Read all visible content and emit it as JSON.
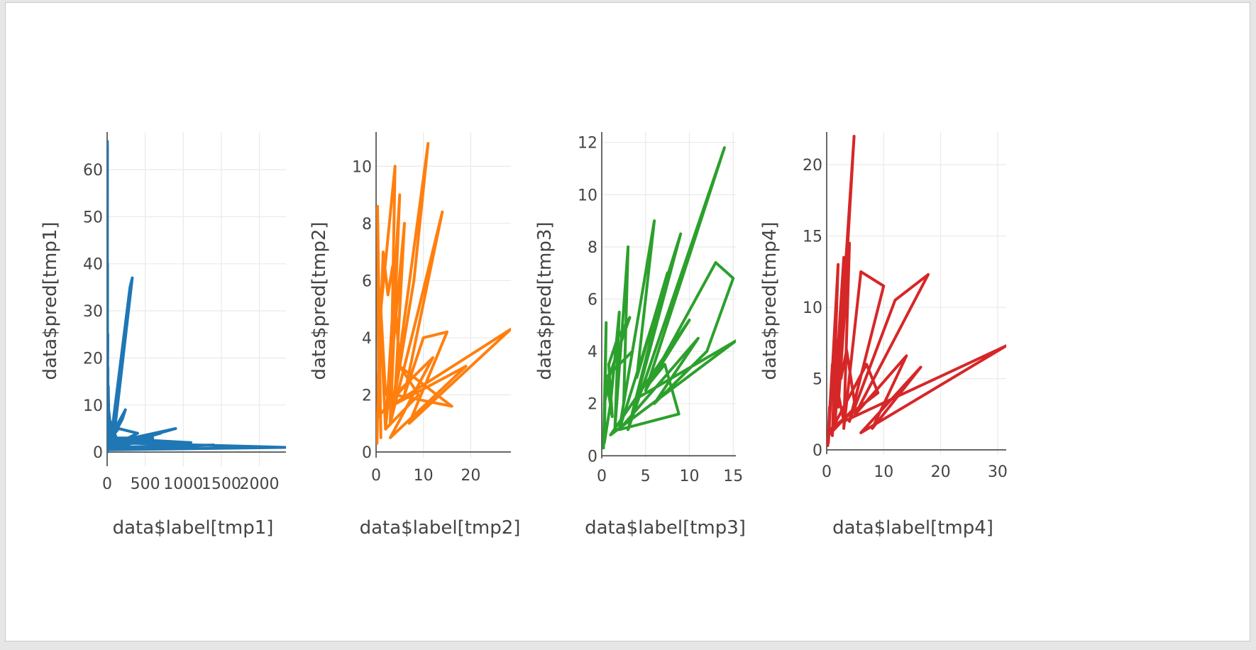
{
  "chart_data": [
    {
      "type": "line",
      "color": "#1f77b4",
      "xlabel": "data$label[tmp1]",
      "ylabel": "data$pred[tmp1]",
      "xlim": [
        0,
        2350
      ],
      "ylim": [
        -3,
        68
      ],
      "xticks": [
        0,
        500,
        1000,
        1500,
        2000
      ],
      "yticks": [
        0,
        10,
        20,
        30,
        40,
        50,
        60
      ],
      "x": [
        2,
        3,
        2,
        4,
        3,
        5,
        2,
        3,
        10,
        8,
        15,
        20,
        40,
        3,
        60,
        300,
        330,
        80,
        6,
        120,
        5,
        200,
        240,
        6,
        150,
        400,
        30,
        700,
        50,
        900,
        10,
        1400,
        5,
        2350,
        20,
        1100,
        3,
        600,
        2,
        6,
        4,
        3,
        1,
        9
      ],
      "y": [
        0,
        66,
        5,
        65,
        30,
        3,
        20,
        10,
        18,
        2,
        14,
        9,
        6,
        1,
        4,
        35,
        37,
        2,
        8,
        3,
        1,
        7,
        9,
        2,
        5,
        4,
        1,
        4,
        2,
        5,
        1,
        1.5,
        0.5,
        1,
        2,
        2,
        3,
        3,
        0.5,
        40,
        15,
        12,
        0,
        25
      ]
    },
    {
      "type": "line",
      "color": "#ff7f0e",
      "xlabel": "data$label[tmp2]",
      "ylabel": "data$pred[tmp2]",
      "xlim": [
        0,
        28.5
      ],
      "ylim": [
        -0.2,
        11.2
      ],
      "xticks": [
        0,
        10,
        20
      ],
      "yticks": [
        0,
        2,
        4,
        6,
        8,
        10
      ],
      "x": [
        0.2,
        0.5,
        0.3,
        1,
        0.5,
        2,
        1,
        4,
        3,
        5,
        2,
        6,
        4,
        8,
        11,
        3,
        9,
        14,
        6,
        10,
        15,
        7,
        28.5,
        2,
        19,
        3,
        12,
        4,
        16,
        5,
        9,
        2,
        1,
        0.5,
        1.5,
        2.5,
        3.5,
        5,
        7,
        0.3,
        0.8
      ],
      "y": [
        0.3,
        3,
        8.6,
        0.5,
        6,
        2,
        5,
        10,
        1,
        9,
        0.8,
        8,
        2,
        6,
        10.8,
        1,
        5,
        8.4,
        2,
        4,
        4.2,
        1,
        4.3,
        1.5,
        3,
        0.5,
        3.3,
        2,
        1.6,
        3,
        2,
        0.8,
        4.5,
        2.5,
        7,
        5.5,
        6.5,
        3,
        2.5,
        1.2,
        4
      ]
    },
    {
      "type": "line",
      "color": "#2ca02c",
      "xlabel": "data$label[tmp3]",
      "ylabel": "data$pred[tmp3]",
      "xlim": [
        0,
        15.3
      ],
      "ylim": [
        -0.1,
        12.4
      ],
      "xticks": [
        0,
        5,
        10,
        15
      ],
      "yticks": [
        0,
        2,
        4,
        6,
        8,
        10,
        12
      ],
      "x": [
        0.2,
        0.5,
        0.3,
        1,
        2,
        1.5,
        3,
        2.5,
        6,
        4,
        7.5,
        3,
        14,
        5,
        13,
        15,
        12,
        6,
        11,
        2,
        9,
        4,
        15.3,
        1,
        10,
        5.5,
        7.2,
        8.8,
        2,
        3.5,
        0.5,
        1.2,
        0.8,
        1.8,
        3.2,
        1,
        0.3
      ],
      "y": [
        0.3,
        5.1,
        0.5,
        2,
        5.5,
        1,
        8,
        2,
        9,
        3,
        7,
        1,
        11.8,
        2.5,
        7.4,
        6.8,
        4,
        2,
        4.5,
        1,
        8.5,
        2.2,
        4.4,
        0.8,
        5.2,
        2.8,
        3.5,
        1.6,
        1,
        4,
        3,
        1.5,
        3.5,
        4.5,
        5.3,
        3.2,
        2
      ]
    },
    {
      "type": "line",
      "color": "#d62728",
      "xlabel": "data$label[tmp4]",
      "ylabel": "data$pred[tmp4]",
      "xlim": [
        0,
        31.5
      ],
      "ylim": [
        -0.3,
        22.3
      ],
      "xticks": [
        0,
        10,
        20,
        30
      ],
      "yticks": [
        0,
        5,
        10,
        15,
        20
      ],
      "x": [
        0.2,
        0.5,
        0.3,
        2,
        1,
        3,
        1.5,
        4.8,
        2,
        4,
        3,
        6,
        10,
        4,
        12,
        17.8,
        5,
        14,
        8,
        16.5,
        6,
        31.5,
        3,
        2,
        1,
        0.5,
        1.5,
        2.5,
        3.5,
        5,
        0.3,
        7,
        9,
        0.8
      ],
      "y": [
        0.3,
        3,
        0.5,
        13,
        1,
        13.5,
        2,
        22,
        3,
        14.5,
        1.5,
        12.5,
        11.5,
        2,
        10.5,
        12.3,
        2.5,
        6.6,
        1.5,
        5.8,
        1.2,
        7.3,
        2,
        4,
        6,
        2.5,
        8,
        5,
        7,
        3,
        1,
        6,
        4,
        1.5
      ]
    }
  ]
}
